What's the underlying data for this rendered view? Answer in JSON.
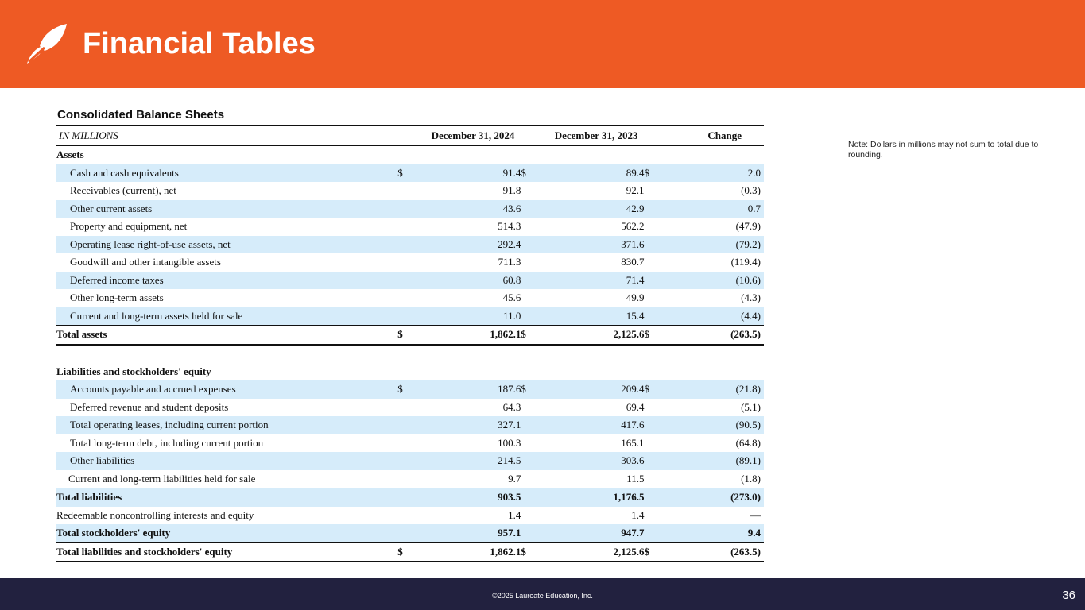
{
  "header": {
    "title": "Financial Tables",
    "bg_color": "#ee5a24"
  },
  "section": {
    "subtitle": "Consolidated  Balance Sheets"
  },
  "note": "Note:  Dollars in millions may not sum to total due to rounding.",
  "table": {
    "columns": [
      "IN MILLIONS",
      "December 31, 2024",
      "December 31, 2023",
      "Change"
    ],
    "rows": [
      {
        "label": "Assets",
        "v1": "",
        "v2": "",
        "v3": "",
        "c1": "",
        "c2": "",
        "c3": ""
      },
      {
        "label": "Cash and cash equivalents",
        "c1": "$",
        "v1": "91.4",
        "c2": "$",
        "v2": "89.4",
        "c3": "$",
        "v3": "2.0"
      },
      {
        "label": "Receivables (current),  net",
        "c1": "",
        "v1": "91.8",
        "c2": "",
        "v2": "92.1",
        "c3": "",
        "v3": "(0.3)"
      },
      {
        "label": "Other current assets",
        "c1": "",
        "v1": "43.6",
        "c2": "",
        "v2": "42.9",
        "c3": "",
        "v3": "0.7"
      },
      {
        "label": "Property and equipment,  net",
        "c1": "",
        "v1": "514.3",
        "c2": "",
        "v2": "562.2",
        "c3": "",
        "v3": "(47.9)"
      },
      {
        "label": "Operating lease right-of-use assets, net",
        "c1": "",
        "v1": "292.4",
        "c2": "",
        "v2": "371.6",
        "c3": "",
        "v3": "(79.2)"
      },
      {
        "label": "Goodwill and other intangible assets",
        "c1": "",
        "v1": "711.3",
        "c2": "",
        "v2": "830.7",
        "c3": "",
        "v3": "(119.4)"
      },
      {
        "label": "Deferred income taxes",
        "c1": "",
        "v1": "60.8",
        "c2": "",
        "v2": "71.4",
        "c3": "",
        "v3": "(10.6)"
      },
      {
        "label": "Other long-term assets",
        "c1": "",
        "v1": "45.6",
        "c2": "",
        "v2": "49.9",
        "c3": "",
        "v3": "(4.3)"
      },
      {
        "label": "Current and long-term assets held for sale",
        "c1": "",
        "v1": "11.0",
        "c2": "",
        "v2": "15.4",
        "c3": "",
        "v3": "(4.4)"
      },
      {
        "label": "Total assets",
        "c1": "$",
        "v1": "1,862.1",
        "c2": "$",
        "v2": "2,125.6",
        "c3": "$",
        "v3": "(263.5)"
      },
      {
        "label": "Liabilities and stockholders' equity",
        "c1": "",
        "v1": "",
        "c2": "",
        "v2": "",
        "c3": "",
        "v3": ""
      },
      {
        "label": "Accounts payable and accrued expenses",
        "c1": "$",
        "v1": "187.6",
        "c2": "$",
        "v2": "209.4",
        "c3": "$",
        "v3": "(21.8)"
      },
      {
        "label": "Deferred revenue and student deposits",
        "c1": "",
        "v1": "64.3",
        "c2": "",
        "v2": "69.4",
        "c3": "",
        "v3": "(5.1)"
      },
      {
        "label": "Total operating leases, including current portion",
        "c1": "",
        "v1": "327.1",
        "c2": "",
        "v2": "417.6",
        "c3": "",
        "v3": "(90.5)"
      },
      {
        "label": "Total long-term debt, including current portion",
        "c1": "",
        "v1": "100.3",
        "c2": "",
        "v2": "165.1",
        "c3": "",
        "v3": "(64.8)"
      },
      {
        "label": "Other  liabilities",
        "c1": "",
        "v1": "214.5",
        "c2": "",
        "v2": "303.6",
        "c3": "",
        "v3": "(89.1)"
      },
      {
        "label": "Current and long-term liabilities held for sale",
        "c1": "",
        "v1": "9.7",
        "c2": "",
        "v2": "11.5",
        "c3": "",
        "v3": "(1.8)"
      },
      {
        "label": "Total liabilities",
        "c1": "",
        "v1": "903.5",
        "c2": "",
        "v2": "1,176.5",
        "c3": "",
        "v3": "(273.0)"
      },
      {
        "label": "Redeemable noncontrolling interests and equity",
        "c1": "",
        "v1": "1.4",
        "c2": "",
        "v2": "1.4",
        "c3": "",
        "v3": "—"
      },
      {
        "label": "Total stockholders' equity",
        "c1": "",
        "v1": "957.1",
        "c2": "",
        "v2": "947.7",
        "c3": "",
        "v3": "9.4"
      },
      {
        "label": "Total liabilities and stockholders' equity",
        "c1": "$",
        "v1": "1,862.1",
        "c2": "$",
        "v2": "2,125.6",
        "c3": "$",
        "v3": "(263.5)"
      }
    ]
  },
  "footer": {
    "copyright": "©2025 Laureate Education, Inc.",
    "page_number": "36",
    "bg_color": "#22213f"
  }
}
